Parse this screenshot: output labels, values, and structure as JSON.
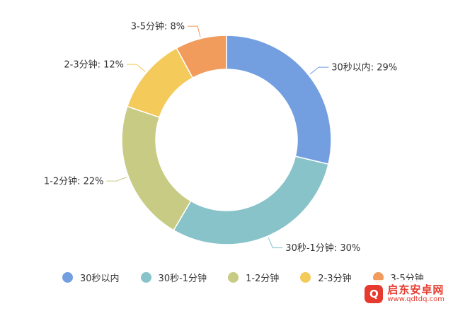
{
  "chart_data": {
    "type": "pie",
    "variant": "donut",
    "categories": [
      "30秒以内",
      "30秒-1分钟",
      "1-2分钟",
      "2-3分钟",
      "3-5分钟"
    ],
    "values": [
      29,
      30,
      22,
      12,
      8
    ],
    "unit": "%",
    "colors": [
      "#739fe1",
      "#87c3c9",
      "#c8cb84",
      "#f4ca5a",
      "#f19b5c"
    ],
    "slice_labels": [
      "30秒以内: 29%",
      "30秒-1分钟: 30%",
      "1-2分钟: 22%",
      "2-3分钟: 12%",
      "3-5分钟: 8%"
    ],
    "legend_position": "bottom",
    "legend": [
      "30秒以内",
      "30秒-1分钟",
      "1-2分钟",
      "2-3分钟",
      "3-5分钟"
    ]
  },
  "watermark": {
    "name": "启东安卓网",
    "url": "www.qdtdq.com",
    "logo_glyph": "Q",
    "color": "#e63a2e"
  }
}
